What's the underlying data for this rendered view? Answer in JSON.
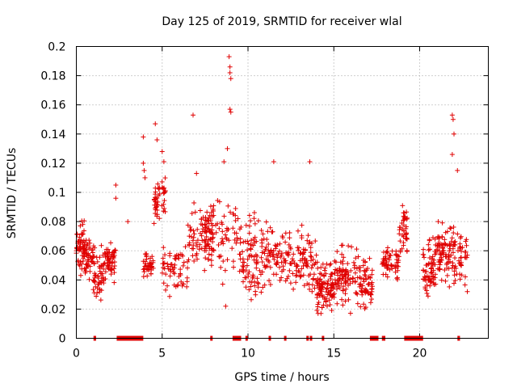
{
  "chart_data": {
    "type": "scatter",
    "title": "Day 125 of 2019, SRMTID for receiver wlal",
    "xlabel": "GPS time / hours",
    "ylabel": "SRMTID / TECUs",
    "xlim": [
      0,
      24
    ],
    "ylim": [
      0,
      0.2
    ],
    "x_ticks": [
      0,
      5,
      10,
      15,
      20
    ],
    "x_tick_labels": [
      "0",
      "5",
      "10",
      "15",
      "20"
    ],
    "y_ticks": [
      0,
      0.02,
      0.04,
      0.06,
      0.08,
      0.1,
      0.12,
      0.14,
      0.16,
      0.18,
      0.2
    ],
    "y_tick_labels": [
      "0",
      "0.02",
      "0.04",
      "0.06",
      "0.08",
      "0.1",
      "0.12",
      "0.14",
      "0.16",
      "0.18",
      "0.2"
    ],
    "grid": true,
    "marker": "+",
    "color": "#e00000",
    "series": [
      {
        "name": "SRMTID",
        "clusters": [
          {
            "x_range": [
              0.0,
              0.5
            ],
            "y_range": [
              0.04,
              0.085
            ],
            "count": 60
          },
          {
            "x_range": [
              0.5,
              1.1
            ],
            "y_range": [
              0.03,
              0.075
            ],
            "count": 50
          },
          {
            "x_range": [
              1.0,
              1.6
            ],
            "y_range": [
              0.02,
              0.065
            ],
            "count": 45
          },
          {
            "x_range": [
              1.6,
              2.3
            ],
            "y_range": [
              0.035,
              0.07
            ],
            "count": 60
          },
          {
            "x_range": [
              3.9,
              4.5
            ],
            "y_range": [
              0.04,
              0.06
            ],
            "count": 40
          },
          {
            "x_range": [
              4.5,
              5.2
            ],
            "y_range": [
              0.075,
              0.12
            ],
            "count": 45
          },
          {
            "x_range": [
              5.0,
              6.5
            ],
            "y_range": [
              0.025,
              0.07
            ],
            "count": 60
          },
          {
            "x_range": [
              6.5,
              8.0
            ],
            "y_range": [
              0.035,
              0.1
            ],
            "count": 80
          },
          {
            "x_range": [
              7.5,
              9.6
            ],
            "y_range": [
              0.03,
              0.11
            ],
            "count": 90
          },
          {
            "x_range": [
              9.6,
              11.0
            ],
            "y_range": [
              0.02,
              0.09
            ],
            "count": 90
          },
          {
            "x_range": [
              11.0,
              12.5
            ],
            "y_range": [
              0.025,
              0.085
            ],
            "count": 80
          },
          {
            "x_range": [
              12.5,
              14.0
            ],
            "y_range": [
              0.02,
              0.08
            ],
            "count": 80
          },
          {
            "x_range": [
              14.0,
              15.0
            ],
            "y_range": [
              0.01,
              0.06
            ],
            "count": 100
          },
          {
            "x_range": [
              15.0,
              16.5
            ],
            "y_range": [
              0.015,
              0.07
            ],
            "count": 100
          },
          {
            "x_range": [
              16.5,
              17.3
            ],
            "y_range": [
              0.01,
              0.06
            ],
            "count": 60
          },
          {
            "x_range": [
              17.8,
              18.8
            ],
            "y_range": [
              0.035,
              0.07
            ],
            "count": 60
          },
          {
            "x_range": [
              18.8,
              19.3
            ],
            "y_range": [
              0.05,
              0.1
            ],
            "count": 40
          },
          {
            "x_range": [
              20.2,
              21.0
            ],
            "y_range": [
              0.02,
              0.075
            ],
            "count": 70
          },
          {
            "x_range": [
              21.0,
              21.8
            ],
            "y_range": [
              0.03,
              0.085
            ],
            "count": 70
          },
          {
            "x_range": [
              21.8,
              22.8
            ],
            "y_range": [
              0.025,
              0.09
            ],
            "count": 60
          }
        ],
        "notable_points": [
          {
            "x": 2.3,
            "y": 0.105
          },
          {
            "x": 2.3,
            "y": 0.096
          },
          {
            "x": 3.0,
            "y": 0.08
          },
          {
            "x": 3.9,
            "y": 0.138
          },
          {
            "x": 3.9,
            "y": 0.12
          },
          {
            "x": 3.95,
            "y": 0.115
          },
          {
            "x": 4.0,
            "y": 0.11
          },
          {
            "x": 4.6,
            "y": 0.147
          },
          {
            "x": 4.7,
            "y": 0.136
          },
          {
            "x": 5.0,
            "y": 0.128
          },
          {
            "x": 5.1,
            "y": 0.121
          },
          {
            "x": 6.8,
            "y": 0.153
          },
          {
            "x": 7.0,
            "y": 0.113
          },
          {
            "x": 8.9,
            "y": 0.193
          },
          {
            "x": 8.95,
            "y": 0.186
          },
          {
            "x": 8.95,
            "y": 0.182
          },
          {
            "x": 9.0,
            "y": 0.178
          },
          {
            "x": 8.95,
            "y": 0.157
          },
          {
            "x": 9.0,
            "y": 0.155
          },
          {
            "x": 8.8,
            "y": 0.13
          },
          {
            "x": 8.6,
            "y": 0.121
          },
          {
            "x": 11.5,
            "y": 0.121
          },
          {
            "x": 13.6,
            "y": 0.121
          },
          {
            "x": 21.9,
            "y": 0.153
          },
          {
            "x": 21.95,
            "y": 0.15
          },
          {
            "x": 22.0,
            "y": 0.14
          },
          {
            "x": 21.9,
            "y": 0.126
          },
          {
            "x": 22.2,
            "y": 0.115
          },
          {
            "x": 8.7,
            "y": 0.022
          }
        ]
      }
    ],
    "zero_bars": [
      [
        1.0,
        1.15
      ],
      [
        2.35,
        3.9
      ],
      [
        7.8,
        7.9
      ],
      [
        9.1,
        9.6
      ],
      [
        9.85,
        9.95
      ],
      [
        11.2,
        11.3
      ],
      [
        12.1,
        12.2
      ],
      [
        13.4,
        13.5
      ],
      [
        13.6,
        13.7
      ],
      [
        14.3,
        14.4
      ],
      [
        17.1,
        17.6
      ],
      [
        17.8,
        18.0
      ],
      [
        19.1,
        20.2
      ],
      [
        22.2,
        22.35
      ]
    ]
  }
}
